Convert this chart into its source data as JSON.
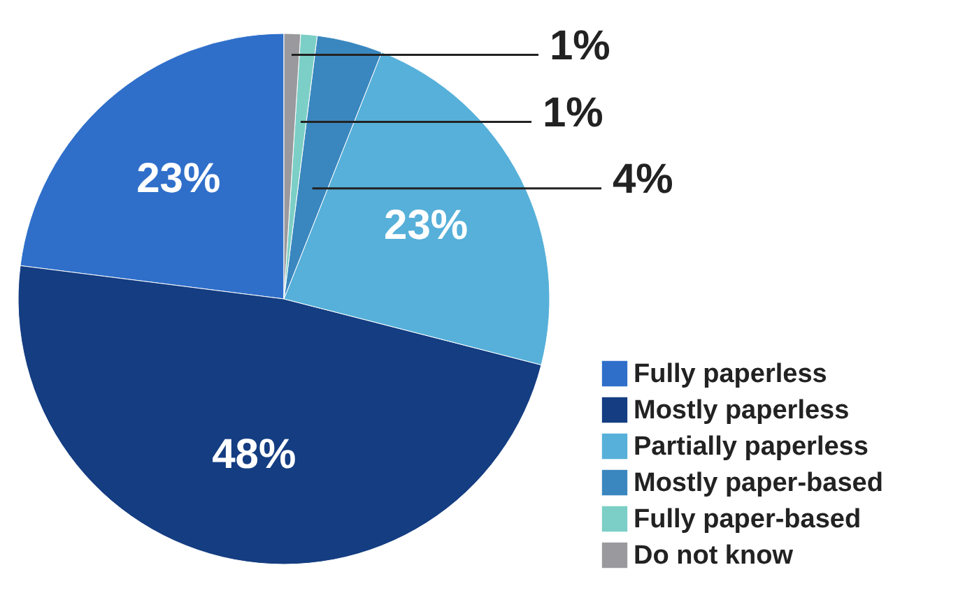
{
  "chart_data": {
    "type": "pie",
    "categories": [
      "Fully paperless",
      "Mostly paperless",
      "Partially paperless",
      "Mostly paper-based",
      "Fully paper-based",
      "Do not know"
    ],
    "values": [
      23,
      48,
      23,
      4,
      1,
      1
    ],
    "colors": [
      "#2f6fca",
      "#143d82",
      "#56b0d9",
      "#3a87bf",
      "#7ccfc6",
      "#9a9a9e"
    ],
    "value_labels": [
      "23%",
      "48%",
      "23%",
      "4%",
      "1%",
      "1%"
    ],
    "legend": "bottom right"
  }
}
